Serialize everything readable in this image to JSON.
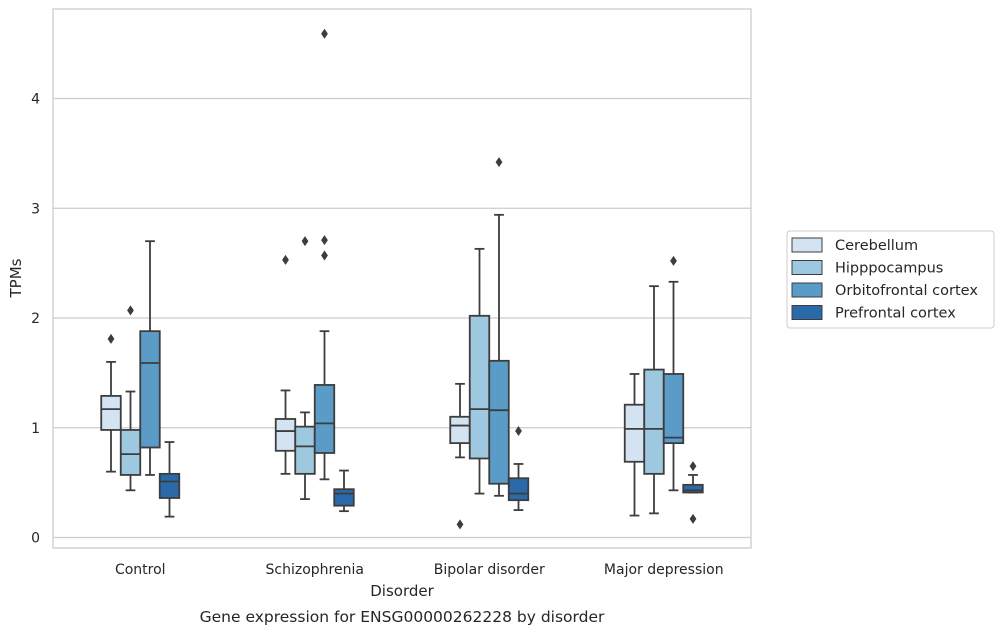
{
  "caption": "Gene expression for ENSG00000262228 by disorder",
  "chart_data": {
    "type": "box",
    "title": "",
    "xlabel": "Disorder",
    "ylabel": "TPMs",
    "ylim": [
      -0.1,
      4.8
    ],
    "yticks": [
      0,
      1,
      2,
      3,
      4
    ],
    "grid": "horizontal",
    "legend_position": "right",
    "categories": [
      "Control",
      "Schizophrenia",
      "Bipolar disorder",
      "Major depression"
    ],
    "series": [
      {
        "name": "Cerebellum",
        "color": "#d4e3f2",
        "boxes": [
          {
            "whisker_low": 0.6,
            "q1": 0.98,
            "median": 1.17,
            "q3": 1.29,
            "whisker_high": 1.6,
            "outliers": [
              1.81
            ]
          },
          {
            "whisker_low": 0.58,
            "q1": 0.79,
            "median": 0.97,
            "q3": 1.08,
            "whisker_high": 1.34,
            "outliers": [
              2.53
            ]
          },
          {
            "whisker_low": 0.73,
            "q1": 0.86,
            "median": 1.02,
            "q3": 1.1,
            "whisker_high": 1.4,
            "outliers": [
              0.12
            ]
          },
          {
            "whisker_low": 0.2,
            "q1": 0.69,
            "median": 0.99,
            "q3": 1.21,
            "whisker_high": 1.49,
            "outliers": []
          }
        ]
      },
      {
        "name": "Hipppocampus",
        "color": "#9ec8e0",
        "boxes": [
          {
            "whisker_low": 0.43,
            "q1": 0.57,
            "median": 0.76,
            "q3": 0.98,
            "whisker_high": 1.33,
            "outliers": [
              2.07
            ]
          },
          {
            "whisker_low": 0.35,
            "q1": 0.58,
            "median": 0.83,
            "q3": 1.01,
            "whisker_high": 1.14,
            "outliers": [
              2.7
            ]
          },
          {
            "whisker_low": 0.4,
            "q1": 0.72,
            "median": 1.17,
            "q3": 2.02,
            "whisker_high": 2.63,
            "outliers": []
          },
          {
            "whisker_low": 0.22,
            "q1": 0.58,
            "median": 0.99,
            "q3": 1.53,
            "whisker_high": 2.29,
            "outliers": []
          }
        ]
      },
      {
        "name": "Orbitofrontal cortex",
        "color": "#5a9bc8",
        "boxes": [
          {
            "whisker_low": 0.57,
            "q1": 0.82,
            "median": 1.59,
            "q3": 1.88,
            "whisker_high": 2.7,
            "outliers": []
          },
          {
            "whisker_low": 0.53,
            "q1": 0.77,
            "median": 1.04,
            "q3": 1.39,
            "whisker_high": 1.88,
            "outliers": [
              2.57,
              2.71,
              4.59
            ]
          },
          {
            "whisker_low": 0.38,
            "q1": 0.49,
            "median": 1.16,
            "q3": 1.61,
            "whisker_high": 2.94,
            "outliers": [
              3.42
            ]
          },
          {
            "whisker_low": 0.43,
            "q1": 0.86,
            "median": 0.91,
            "q3": 1.49,
            "whisker_high": 2.33,
            "outliers": [
              2.52
            ]
          }
        ]
      },
      {
        "name": "Prefrontal cortex",
        "color": "#2a6aaa",
        "boxes": [
          {
            "whisker_low": 0.19,
            "q1": 0.36,
            "median": 0.51,
            "q3": 0.58,
            "whisker_high": 0.87,
            "outliers": []
          },
          {
            "whisker_low": 0.24,
            "q1": 0.29,
            "median": 0.4,
            "q3": 0.44,
            "whisker_high": 0.61,
            "outliers": []
          },
          {
            "whisker_low": 0.25,
            "q1": 0.34,
            "median": 0.4,
            "q3": 0.54,
            "whisker_high": 0.67,
            "outliers": [
              0.97
            ]
          },
          {
            "whisker_low": 0.41,
            "q1": 0.41,
            "median": 0.43,
            "q3": 0.48,
            "whisker_high": 0.57,
            "outliers": [
              0.17,
              0.65
            ]
          }
        ]
      }
    ]
  }
}
